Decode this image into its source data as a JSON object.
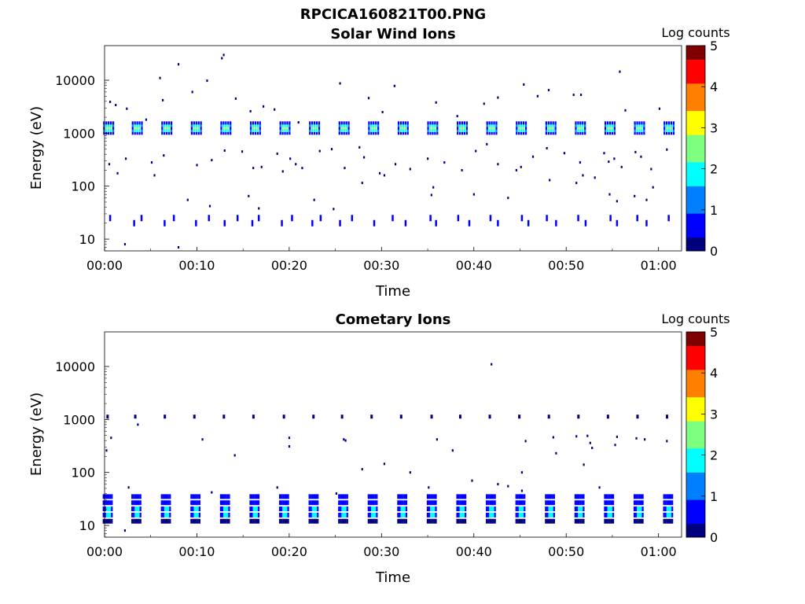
{
  "figure": {
    "title": "RPCICA160821T00.PNG"
  },
  "colors": {
    "colormap": [
      "#00007f",
      "#0000ff",
      "#007fff",
      "#00ffff",
      "#7fff7f",
      "#ffff00",
      "#ff7f00",
      "#ff0000",
      "#7f0000"
    ]
  },
  "chart_data": [
    {
      "type": "heatmap",
      "title": "Solar Wind Ions",
      "xlabel": "Time",
      "ylabel": "Energy (eV)",
      "x_ticks": [
        "00:00",
        "00:10",
        "00:20",
        "00:30",
        "00:40",
        "00:50",
        "01:00"
      ],
      "x_tick_values_min": [
        0,
        10,
        20,
        30,
        40,
        50,
        60
      ],
      "xlim_min": [
        0,
        62.5
      ],
      "y_scale": "log",
      "y_ticks": [
        "10",
        "100",
        "1000",
        "10000"
      ],
      "y_tick_values": [
        10,
        100,
        1000,
        10000
      ],
      "ylim": [
        6,
        45000
      ],
      "colorbar": {
        "label": "Log counts",
        "ticks": [
          "0",
          "1",
          "2",
          "3",
          "4",
          "5"
        ],
        "range": [
          0,
          5
        ]
      },
      "periodic_bursts": {
        "description_values": "peak near 1200 eV, repeating every ~3.2 min",
        "start_times_min": [
          0.1,
          3.2,
          6.4,
          9.6,
          12.8,
          16.0,
          19.2,
          22.4,
          25.6,
          28.8,
          32.0,
          35.2,
          38.4,
          41.6,
          44.8,
          48.0,
          51.2,
          54.4,
          57.6,
          60.8
        ],
        "energy_center_eV": 1200,
        "max_log_counts": 2.6
      },
      "low_energy_events": {
        "energy_eV": [
          25,
          20
        ],
        "times_min": [
          0.5,
          3.1,
          3.9,
          6.4,
          7.4,
          9.8,
          11.2,
          12.9,
          14.3,
          15.9,
          16.6,
          19.1,
          20.2,
          22.4,
          23.3,
          25.4,
          26.7,
          29.1,
          31.1,
          32.5,
          35.2,
          35.8,
          38.2,
          39.4,
          41.7,
          42.5,
          45.1,
          45.8,
          47.8,
          48.8,
          51.2,
          52.0,
          54.7,
          55.4,
          57.6,
          58.6,
          61.0
        ],
        "max_log_counts": 0.5
      },
      "sparse_points": [
        [
          0.6,
          3900
        ],
        [
          1.2,
          3400
        ],
        [
          2.4,
          2900
        ],
        [
          4.5,
          1800
        ],
        [
          6.0,
          11000
        ],
        [
          6.3,
          4200
        ],
        [
          8.0,
          20000
        ],
        [
          9.5,
          6000
        ],
        [
          11.1,
          9800
        ],
        [
          12.7,
          26000
        ],
        [
          12.9,
          30000
        ],
        [
          14.2,
          4500
        ],
        [
          15.8,
          2600
        ],
        [
          17.2,
          3200
        ],
        [
          18.4,
          2800
        ],
        [
          21.0,
          1600
        ],
        [
          25.5,
          8700
        ],
        [
          28.6,
          4600
        ],
        [
          30.1,
          2500
        ],
        [
          31.4,
          7800
        ],
        [
          35.9,
          3800
        ],
        [
          38.2,
          2100
        ],
        [
          41.1,
          3600
        ],
        [
          42.6,
          4700
        ],
        [
          45.4,
          8300
        ],
        [
          46.9,
          5000
        ],
        [
          48.1,
          6500
        ],
        [
          50.8,
          5300
        ],
        [
          51.6,
          5300
        ],
        [
          55.8,
          14500
        ],
        [
          56.4,
          2700
        ],
        [
          60.1,
          2900
        ],
        [
          0.5,
          260
        ],
        [
          1.4,
          175
        ],
        [
          2.3,
          330
        ],
        [
          5.1,
          280
        ],
        [
          5.4,
          160
        ],
        [
          6.4,
          380
        ],
        [
          10.0,
          250
        ],
        [
          11.6,
          310
        ],
        [
          13.0,
          470
        ],
        [
          14.9,
          450
        ],
        [
          16.1,
          220
        ],
        [
          17.0,
          230
        ],
        [
          18.7,
          410
        ],
        [
          19.3,
          190
        ],
        [
          20.1,
          330
        ],
        [
          20.7,
          260
        ],
        [
          21.4,
          220
        ],
        [
          23.3,
          460
        ],
        [
          24.6,
          500
        ],
        [
          26.0,
          220
        ],
        [
          27.6,
          540
        ],
        [
          28.1,
          350
        ],
        [
          29.8,
          175
        ],
        [
          31.5,
          260
        ],
        [
          33.1,
          210
        ],
        [
          35.0,
          330
        ],
        [
          36.8,
          280
        ],
        [
          38.7,
          200
        ],
        [
          40.2,
          460
        ],
        [
          41.4,
          620
        ],
        [
          42.6,
          260
        ],
        [
          44.6,
          200
        ],
        [
          45.1,
          230
        ],
        [
          46.4,
          360
        ],
        [
          47.9,
          520
        ],
        [
          49.8,
          420
        ],
        [
          51.5,
          280
        ],
        [
          51.8,
          160
        ],
        [
          53.1,
          145
        ],
        [
          54.1,
          420
        ],
        [
          54.6,
          290
        ],
        [
          55.2,
          330
        ],
        [
          56.0,
          230
        ],
        [
          57.5,
          440
        ],
        [
          58.1,
          360
        ],
        [
          59.2,
          210
        ],
        [
          60.9,
          490
        ],
        [
          9.0,
          55
        ],
        [
          11.4,
          42
        ],
        [
          15.6,
          65
        ],
        [
          16.7,
          38
        ],
        [
          22.7,
          55
        ],
        [
          24.8,
          37
        ],
        [
          27.9,
          115
        ],
        [
          30.3,
          160
        ],
        [
          35.4,
          68
        ],
        [
          35.6,
          95
        ],
        [
          40.0,
          70
        ],
        [
          43.7,
          60
        ],
        [
          48.2,
          130
        ],
        [
          51.1,
          115
        ],
        [
          54.7,
          70
        ],
        [
          55.5,
          52
        ],
        [
          57.4,
          65
        ],
        [
          58.7,
          55
        ],
        [
          59.4,
          95
        ],
        [
          2.2,
          8
        ],
        [
          8.0,
          7
        ]
      ]
    },
    {
      "type": "heatmap",
      "title": "Cometary Ions",
      "xlabel": "Time",
      "ylabel": "Energy (eV)",
      "x_ticks": [
        "00:00",
        "00:10",
        "00:20",
        "00:30",
        "00:40",
        "00:50",
        "01:00"
      ],
      "x_tick_values_min": [
        0,
        10,
        20,
        30,
        40,
        50,
        60
      ],
      "xlim_min": [
        0,
        62.5
      ],
      "y_scale": "log",
      "y_ticks": [
        "10",
        "100",
        "1000",
        "10000"
      ],
      "y_tick_values": [
        10,
        100,
        1000,
        10000
      ],
      "ylim": [
        6,
        45000
      ],
      "colorbar": {
        "label": "Log counts",
        "ticks": [
          "0",
          "1",
          "2",
          "3",
          "4",
          "5"
        ],
        "range": [
          0,
          5
        ]
      },
      "periodic_bursts": {
        "description_values": "low-energy bursts 12–35 eV, repeating every ~3.2 min",
        "start_times_min": [
          0.1,
          3.2,
          6.4,
          9.6,
          12.8,
          16.0,
          19.2,
          22.4,
          25.6,
          28.8,
          32.0,
          35.2,
          38.4,
          41.6,
          44.8,
          48.0,
          51.2,
          54.4,
          57.6,
          60.8
        ],
        "energy_range_eV": [
          12,
          35
        ],
        "max_log_counts": 2.2
      },
      "high_energy_events": {
        "energy_eV": 1150,
        "times_min": [
          0.2,
          3.2,
          6.4,
          9.6,
          12.8,
          16.0,
          19.3,
          22.5,
          25.6,
          28.8,
          32.0,
          35.3,
          38.4,
          41.6,
          44.8,
          48.0,
          51.2,
          54.4,
          57.6,
          60.8
        ]
      },
      "sparse_points": [
        [
          0.7,
          450
        ],
        [
          0.2,
          260
        ],
        [
          3.6,
          800
        ],
        [
          10.6,
          420
        ],
        [
          14.1,
          210
        ],
        [
          20.0,
          450
        ],
        [
          20.0,
          310
        ],
        [
          25.9,
          420
        ],
        [
          26.1,
          400
        ],
        [
          27.9,
          115
        ],
        [
          30.3,
          145
        ],
        [
          33.1,
          100
        ],
        [
          36.0,
          420
        ],
        [
          37.7,
          260
        ],
        [
          41.9,
          11000
        ],
        [
          39.8,
          70
        ],
        [
          42.6,
          60
        ],
        [
          43.7,
          55
        ],
        [
          45.2,
          100
        ],
        [
          45.6,
          390
        ],
        [
          48.6,
          460
        ],
        [
          48.9,
          230
        ],
        [
          51.1,
          480
        ],
        [
          51.9,
          140
        ],
        [
          52.3,
          490
        ],
        [
          52.6,
          360
        ],
        [
          52.8,
          290
        ],
        [
          55.3,
          330
        ],
        [
          55.5,
          470
        ],
        [
          57.6,
          440
        ],
        [
          58.5,
          420
        ],
        [
          60.9,
          390
        ],
        [
          2.6,
          52
        ],
        [
          18.7,
          52
        ],
        [
          35.1,
          52
        ],
        [
          45.2,
          45
        ],
        [
          53.6,
          52
        ],
        [
          2.2,
          8
        ],
        [
          11.6,
          42
        ],
        [
          25.1,
          40
        ]
      ]
    }
  ]
}
